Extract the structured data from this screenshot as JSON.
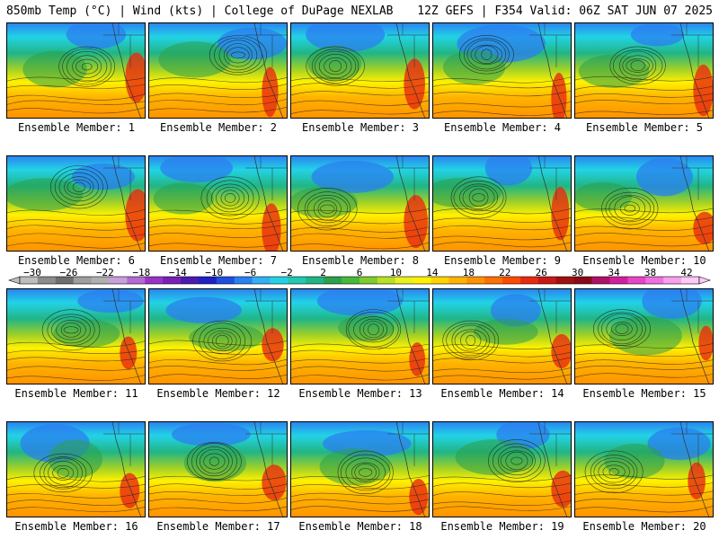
{
  "header": {
    "left": "850mb Temp (°C) | Wind (kts) | College of DuPage NEXLAB",
    "right": "12Z GEFS | F354 Valid: 06Z SAT JUN 07 2025"
  },
  "label_prefix": "Ensemble Member: ",
  "members": [
    1,
    2,
    3,
    4,
    5,
    6,
    7,
    8,
    9,
    10,
    11,
    12,
    13,
    14,
    15,
    16,
    17,
    18,
    19,
    20
  ],
  "colorbar": {
    "ticks": [
      "−30",
      "−26",
      "−22",
      "−18",
      "−14",
      "−10",
      "−6",
      "−2",
      "2",
      "6",
      "10",
      "14",
      "18",
      "22",
      "26",
      "30",
      "34",
      "38",
      "42"
    ],
    "colors": [
      "#bdbdbd",
      "#8c8c8c",
      "#6e6e6e",
      "#9e9e9e",
      "#b0b0b0",
      "#c9a0dc",
      "#b36ad3",
      "#9a32c8",
      "#7a1fb8",
      "#4b1ab0",
      "#2020c8",
      "#1f4fe0",
      "#2b7ff0",
      "#33b0f5",
      "#22d3e6",
      "#20c9b0",
      "#21b585",
      "#2ca04c",
      "#47b83a",
      "#7fcc2e",
      "#b9e025",
      "#e8f020",
      "#fff200",
      "#ffd400",
      "#ffb300",
      "#ff9200",
      "#ff7000",
      "#ff4a00",
      "#e82a10",
      "#c81818",
      "#a01010",
      "#8a0818",
      "#b0106a",
      "#d41ea0",
      "#e844c8",
      "#f070e0",
      "#f8a0ee",
      "#ffc8f8"
    ]
  }
}
